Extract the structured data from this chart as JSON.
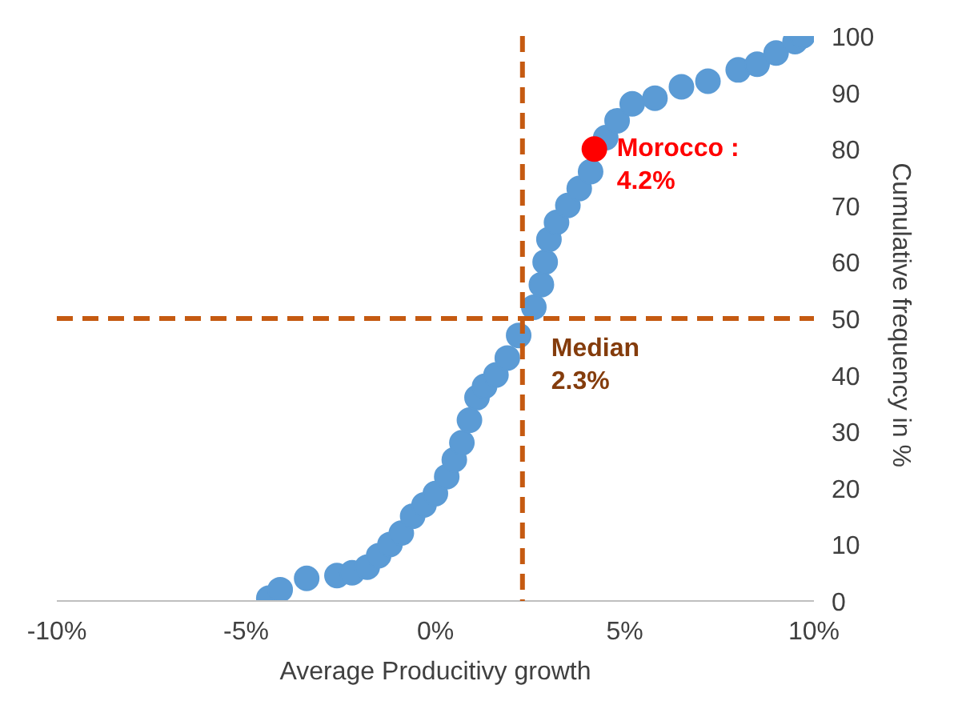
{
  "chart_data": {
    "type": "scatter",
    "xlabel": "Average Producitivy growth",
    "y2label": "Cumulative frequency  in %",
    "xlim": [
      -10,
      10
    ],
    "xticks": [
      {
        "value": -10,
        "label": "-10%"
      },
      {
        "value": -5,
        "label": "-5%"
      },
      {
        "value": 0,
        "label": "0%"
      },
      {
        "value": 5,
        "label": "5%"
      },
      {
        "value": 10,
        "label": "10%"
      }
    ],
    "ylim": [
      0,
      100
    ],
    "yticks": [
      0,
      10,
      20,
      30,
      40,
      50,
      60,
      70,
      80,
      90,
      100
    ],
    "grid": false,
    "marker": "circle",
    "series": [
      {
        "color": "#5b9bd5",
        "x": [
          -4.4,
          -4.1,
          -3.4,
          -2.6,
          -2.2,
          -1.8,
          -1.5,
          -1.2,
          -0.9,
          -0.6,
          -0.3,
          0,
          0.3,
          0.5,
          0.7,
          0.9,
          1.1,
          1.3,
          1.6,
          1.9,
          2.2,
          2.6,
          2.8,
          2.9,
          3.0,
          3.2,
          3.5,
          3.8,
          4.1,
          4.5,
          4.8,
          5.2,
          5.8,
          6.5,
          7.2,
          8.0,
          8.5,
          9.0,
          9.5,
          9.7
        ],
        "values": [
          0.5,
          2,
          4,
          4.5,
          5,
          6,
          8,
          10,
          12,
          15,
          17,
          19,
          22,
          25,
          28,
          32,
          36,
          38,
          40,
          43,
          47,
          52,
          56,
          60,
          64,
          67,
          70,
          73,
          76,
          82,
          85,
          88,
          89,
          91,
          92,
          94,
          95,
          97,
          99,
          100
        ]
      },
      {
        "color": "#ff0000",
        "x": [
          4.2
        ],
        "values": [
          80
        ]
      }
    ],
    "ref_lines": [
      {
        "axis": "x",
        "value": 2.3,
        "label": "Median\n2.3%",
        "color": "#c55a11",
        "line_style": "dashed"
      },
      {
        "axis": "y",
        "value": 50,
        "color": "#c55a11",
        "line_style": "dashed"
      }
    ],
    "annotations": [
      {
        "text": "Morocco  :\n4.2%",
        "x": 4.2,
        "y": 80
      }
    ]
  }
}
